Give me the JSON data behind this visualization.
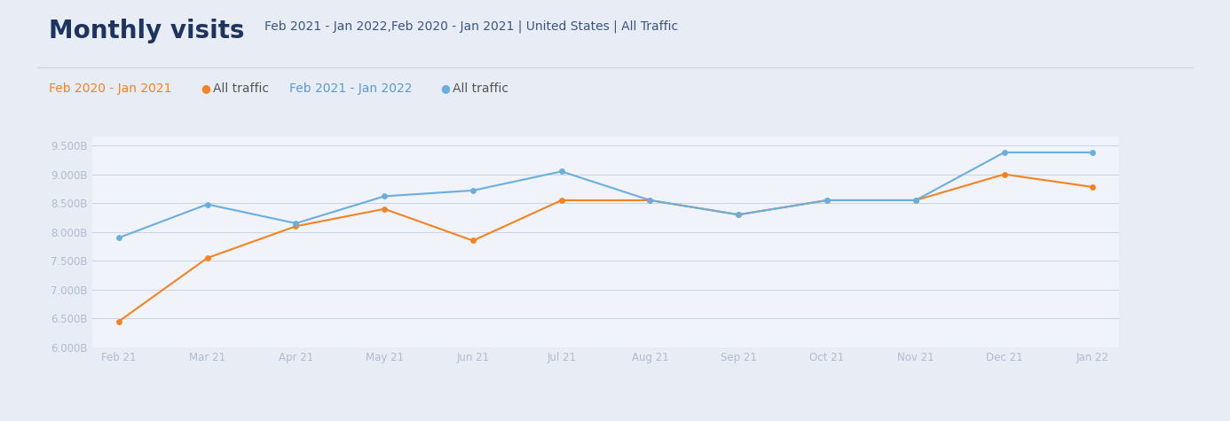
{
  "title": "Monthly visits",
  "subtitle": "Feb 2021 - Jan 2022,Feb 2020 - Jan 2021 | United States | All Traffic",
  "background_color": "#e8edf5",
  "plot_background_color": "#f0f4fa",
  "x_labels": [
    "Feb 21",
    "Mar 21",
    "Apr 21",
    "May 21",
    "Jun 21",
    "Jul 21",
    "Aug 21",
    "Sep 21",
    "Oct 21",
    "Nov 21",
    "Dec 21",
    "Jan 22"
  ],
  "orange_values": [
    6.45,
    7.55,
    8.1,
    8.4,
    7.85,
    8.55,
    8.55,
    8.3,
    8.55,
    8.55,
    9.0,
    8.78
  ],
  "blue_values": [
    7.9,
    8.48,
    8.15,
    8.62,
    8.72,
    9.05,
    8.55,
    8.3,
    8.55,
    8.55,
    9.38,
    9.38
  ],
  "ylim": [
    6.0,
    9.65
  ],
  "yticks": [
    6.0,
    6.5,
    7.0,
    7.5,
    8.0,
    8.5,
    9.0,
    9.5
  ],
  "ytick_labels": [
    "6.000B",
    "6.500B",
    "7.000B",
    "7.500B",
    "8.000B",
    "8.500B",
    "9.000B",
    "9.500B"
  ],
  "orange_color": "#f58220",
  "blue_color": "#6aaee0",
  "title_color": "#1d3461",
  "subtitle_color": "#3a5580",
  "tick_color": "#b0bdd0",
  "grid_color": "#c8d4e3",
  "sep_line_color": "#c8d4e3",
  "legend_orange_text": "#f58220",
  "legend_blue_text": "#5b9bd5",
  "legend_all_traffic_color": "#555555",
  "title_fontsize": 20,
  "subtitle_fontsize": 10,
  "tick_fontsize": 8.5,
  "legend_fontsize": 10
}
